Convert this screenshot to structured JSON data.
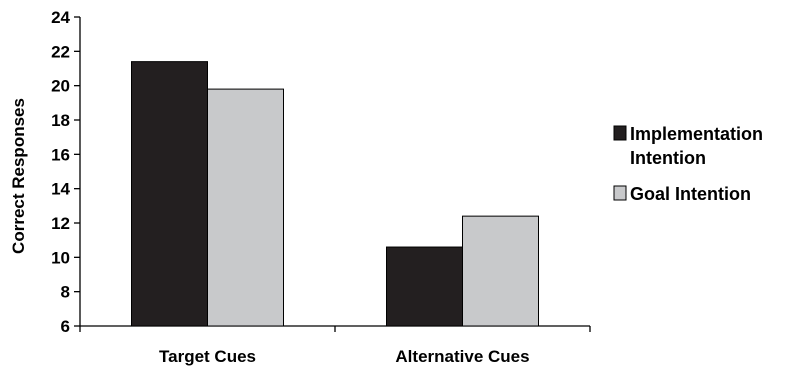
{
  "chart_data": {
    "type": "bar",
    "categories": [
      "Target Cues",
      "Alternative Cues"
    ],
    "series": [
      {
        "name": "Implementation Intention",
        "name_lines": [
          "Implementation",
          "Intention"
        ],
        "values": [
          21.4,
          10.6
        ],
        "color": "#231f20"
      },
      {
        "name": "Goal Intention",
        "name_lines": [
          "Goal Intention"
        ],
        "values": [
          19.8,
          12.4
        ],
        "color": "#c8c9cb"
      }
    ],
    "title": "",
    "xlabel": "",
    "ylabel": "Correct Responses",
    "ylim": [
      6,
      24
    ],
    "yticks": [
      6,
      8,
      10,
      12,
      14,
      16,
      18,
      20,
      22,
      24
    ],
    "grid": false,
    "legend": "right"
  }
}
